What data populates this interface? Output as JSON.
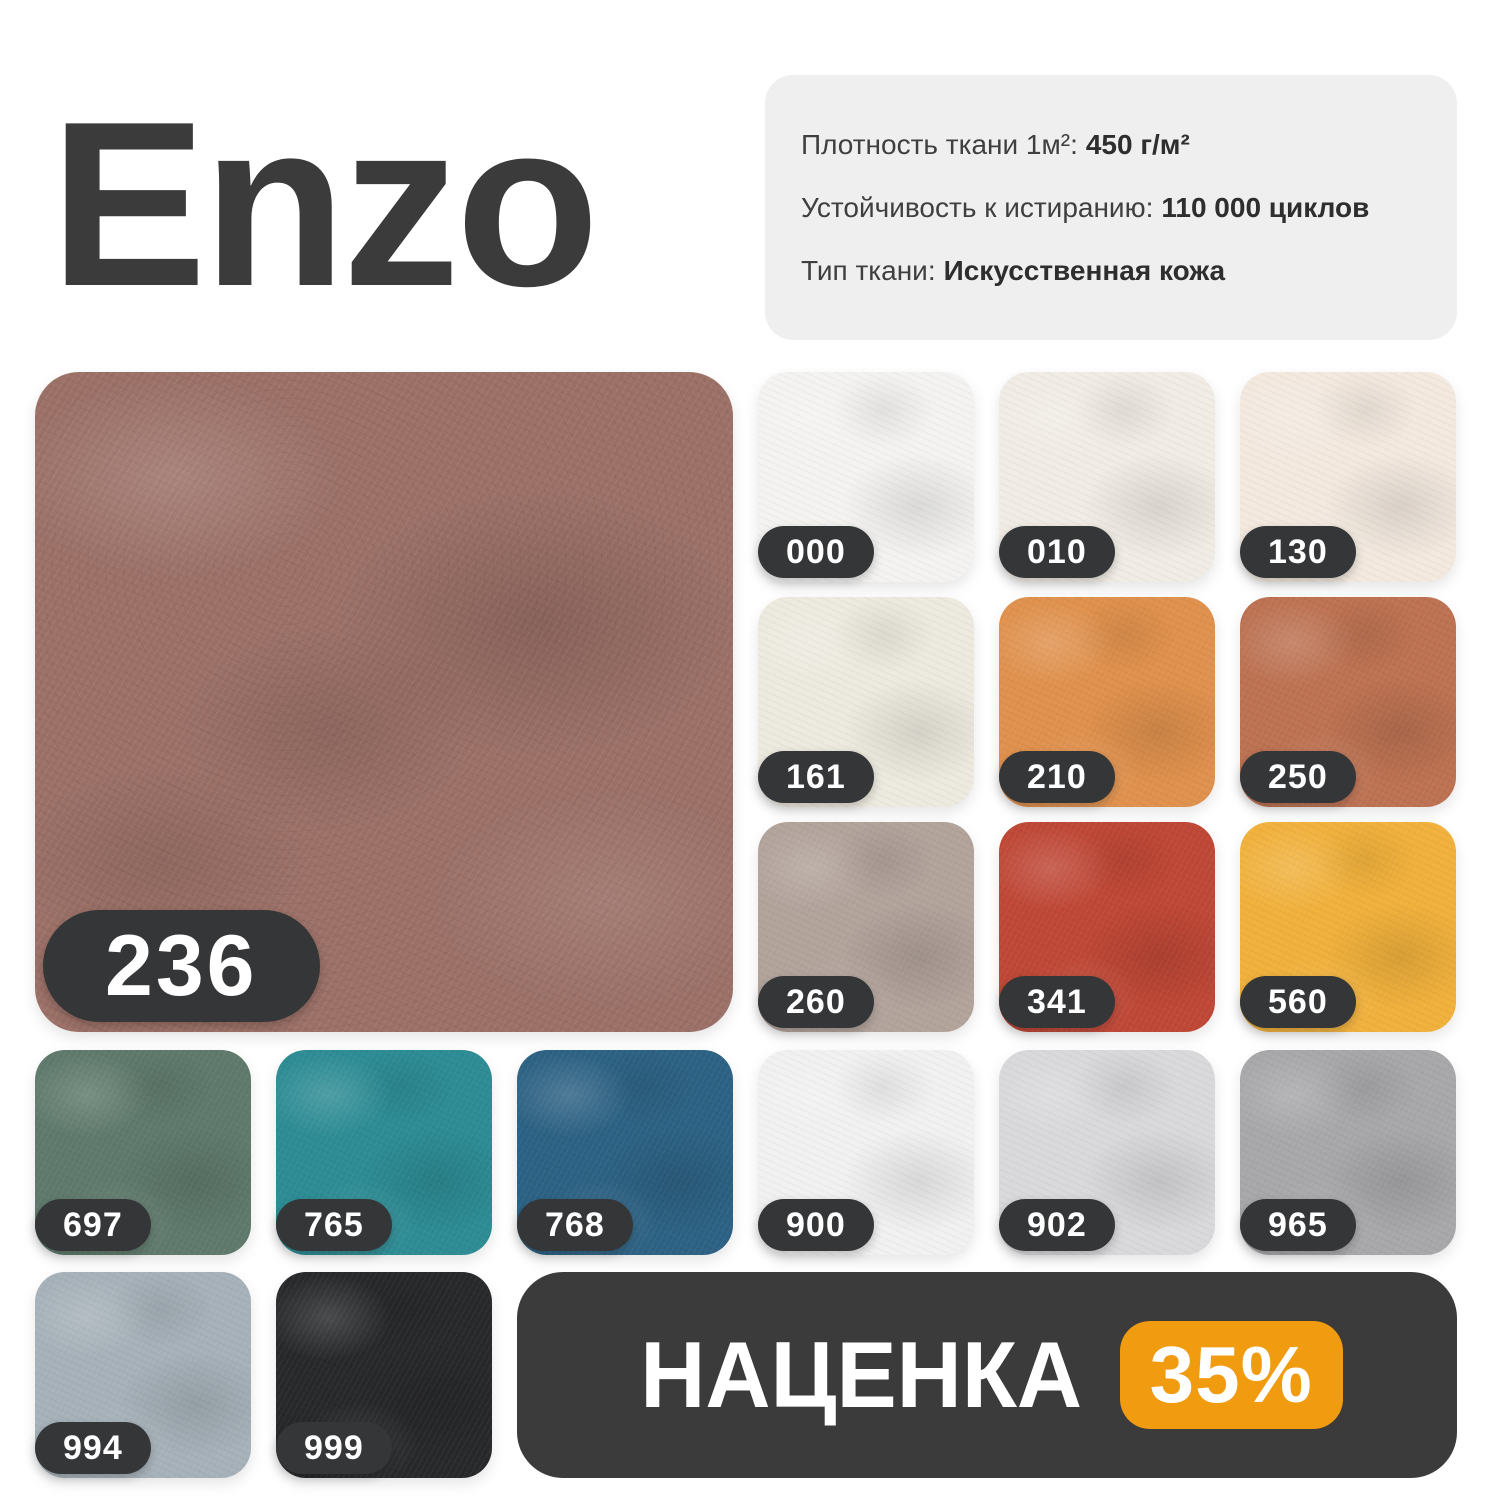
{
  "title": "Enzo",
  "specs": {
    "lines": [
      {
        "label": "Плотность ткани 1м²:",
        "value": "450 г/м²"
      },
      {
        "label": "Устойчивость к истиранию:",
        "value": "110 000 циклов"
      },
      {
        "label": "Тип ткани:",
        "value": "Искусственная кожа"
      }
    ]
  },
  "main_swatch": {
    "code": "236",
    "color": "#9c7168"
  },
  "grid_right": [
    {
      "code": "000",
      "color": "#f4f3f1"
    },
    {
      "code": "010",
      "color": "#f1ece5"
    },
    {
      "code": "130",
      "color": "#f3e9df"
    },
    {
      "code": "161",
      "color": "#edeadf"
    },
    {
      "code": "210",
      "color": "#e0914d"
    },
    {
      "code": "250",
      "color": "#bd7252"
    },
    {
      "code": "260",
      "color": "#b2a39b"
    },
    {
      "code": "341",
      "color": "#bf4736"
    },
    {
      "code": "560",
      "color": "#f1b13c"
    }
  ],
  "row_a": [
    {
      "code": "697",
      "color": "#5f7a6c"
    },
    {
      "code": "765",
      "color": "#2d8c94"
    },
    {
      "code": "768",
      "color": "#2d6284"
    },
    {
      "code": "900",
      "color": "#f1f1f2"
    },
    {
      "code": "902",
      "color": "#d9d9db"
    },
    {
      "code": "965",
      "color": "#a8a8aa"
    }
  ],
  "row_b": [
    {
      "code": "994",
      "color": "#a6b1b9"
    },
    {
      "code": "999",
      "color": "#28292b"
    }
  ],
  "banner": {
    "label": "НАЦЕНКА",
    "badge": "35%"
  },
  "colors": {
    "title": "#3b3b3b",
    "specs_card_bg": "#efeff0",
    "pill_bg": "#343638",
    "banner_bg": "#3b3b3b",
    "badge_bg": "#f09b10",
    "page_bg": "#ffffff"
  }
}
